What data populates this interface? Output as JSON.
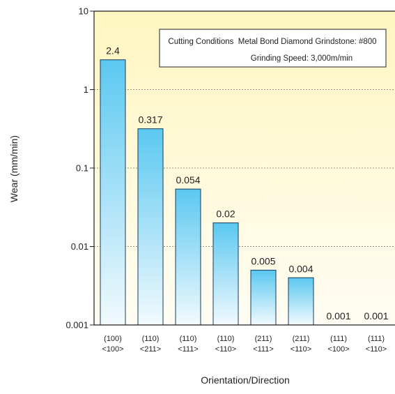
{
  "chart_data": {
    "type": "bar",
    "yscale": "log",
    "ylim": [
      0.001,
      10
    ],
    "yticks": [
      "10",
      "1",
      "0.1",
      "0.01",
      "0.001"
    ],
    "ytick_values": [
      10,
      1,
      0.1,
      0.01,
      0.001
    ],
    "xlabel": "Orientation/Direction",
    "ylabel": "Wear (mm/min)",
    "categories": [
      {
        "orientation": "(100)",
        "direction": "<100>"
      },
      {
        "orientation": "(110)",
        "direction": "<211>"
      },
      {
        "orientation": "(110)",
        "direction": "<111>"
      },
      {
        "orientation": "(110)",
        "direction": "<110>"
      },
      {
        "orientation": "(211)",
        "direction": "<111>"
      },
      {
        "orientation": "(211)",
        "direction": "<110>"
      },
      {
        "orientation": "(111)",
        "direction": "<100>"
      },
      {
        "orientation": "(111)",
        "direction": "<110>"
      }
    ],
    "values": [
      2.4,
      0.317,
      0.054,
      0.02,
      0.005,
      0.004,
      0.001,
      0.001
    ],
    "value_labels": [
      "2.4",
      "0.317",
      "0.054",
      "0.02",
      "0.005",
      "0.004",
      "0.001",
      "0.001"
    ],
    "annotation": {
      "line1": "Cutting Conditions  Metal Bond Diamond Grindstone: #800",
      "line2": "Grinding Speed: 3,000m/min"
    },
    "grid": "dashed horizontal at decades",
    "colors": {
      "bar_top": "#5bc8f0",
      "bar_bottom": "#f2fafe",
      "bar_stroke": "#1a3a5c",
      "bg_top": "#fff6c0",
      "bg_bottom": "#fffdf4"
    }
  }
}
